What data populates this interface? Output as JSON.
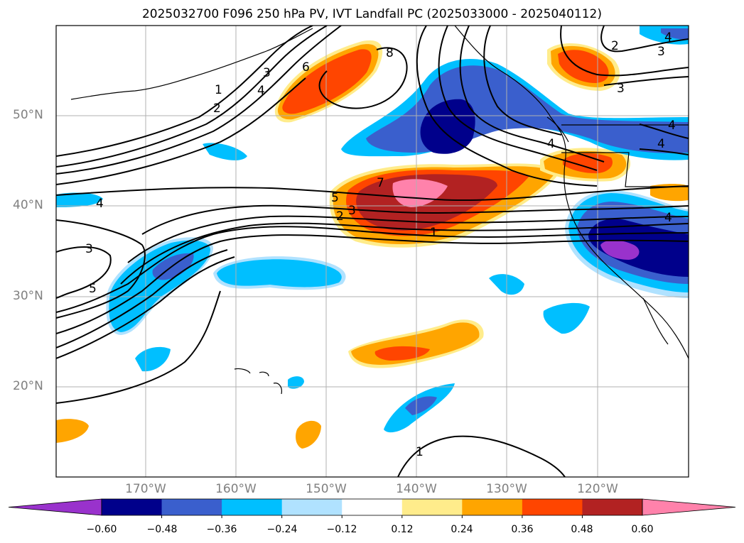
{
  "title": "2025032700 F096 250 hPa PV, IVT Landfall PC (2025033000 - 2025040112)",
  "map": {
    "lat_labels": [
      "50°N",
      "40°N",
      "30°N",
      "20°N"
    ],
    "lon_labels": [
      "170°W",
      "160°W",
      "150°W",
      "140°W",
      "130°W",
      "120°W"
    ],
    "contour_labels": [
      "1",
      "2",
      "3",
      "4",
      "6",
      "8",
      "2",
      "3",
      "3",
      "4",
      "4",
      "4",
      "5",
      "7",
      "5",
      "2",
      "3",
      "1",
      "4",
      "3",
      "5",
      "1",
      "4",
      "4"
    ],
    "shading_colors": {
      "neg4": "#9932CC",
      "neg3": "#00008B",
      "neg2": "#3A5FCD",
      "neg1": "#00BFFF",
      "neg0": "#B0E2FF",
      "pos0": "#FFEC8B",
      "pos1": "#FFA500",
      "pos2": "#FF4500",
      "pos3": "#B22222",
      "pos4": "#FF82AB"
    }
  },
  "colorbar": {
    "colors": [
      "#9932CC",
      "#00008B",
      "#3A5FCD",
      "#00BFFF",
      "#B0E2FF",
      "#FFFFFF",
      "#FFEC8B",
      "#FFA500",
      "#FF4500",
      "#B22222",
      "#FF82AB"
    ],
    "tick_labels": [
      "−0.60",
      "−0.48",
      "−0.36",
      "−0.24",
      "−0.12",
      "0.12",
      "0.24",
      "0.36",
      "0.48",
      "0.60"
    ]
  }
}
